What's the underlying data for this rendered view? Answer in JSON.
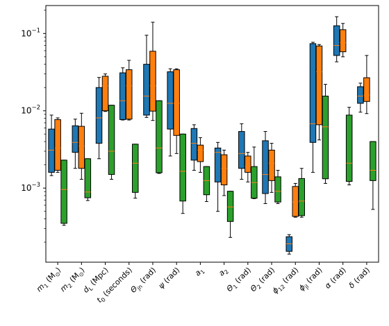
{
  "chart_data": {
    "type": "boxplot",
    "title": "",
    "xlabel": "",
    "ylabel": "",
    "yscale": "log",
    "ylim": [
      0.00011,
      0.23
    ],
    "yticks": [
      {
        "value": 0.001,
        "base": "10",
        "exp": "−3"
      },
      {
        "value": 0.01,
        "base": "10",
        "exp": "−2"
      },
      {
        "value": 0.1,
        "base": "10",
        "exp": "−1"
      }
    ],
    "grid": false,
    "legend": "none",
    "series_colors": [
      "#1f77b4",
      "#ff7f0e",
      "#2ca02c"
    ],
    "median_color": "#ff7f0e",
    "categories": [
      {
        "main": "m",
        "sub": "1",
        "tail": " (M",
        "unit_sub": "⊙",
        "end": ")"
      },
      {
        "main": "m",
        "sub": "2",
        "tail": " (M",
        "unit_sub": "⊙",
        "end": ")"
      },
      {
        "main": "d",
        "sub": "L",
        "tail": " (Mpc)",
        "unit_sub": "",
        "end": ""
      },
      {
        "main": "t",
        "sub": "0",
        "tail": " (seconds)",
        "unit_sub": "",
        "end": ""
      },
      {
        "main": "Θ",
        "sub": "jn",
        "tail": " (rad)",
        "unit_sub": "",
        "end": ""
      },
      {
        "main": "ψ",
        "sub": "",
        "tail": " (rad)",
        "unit_sub": "",
        "end": ""
      },
      {
        "main": "a",
        "sub": "1",
        "tail": "",
        "unit_sub": "",
        "end": ""
      },
      {
        "main": "a",
        "sub": "2",
        "tail": "",
        "unit_sub": "",
        "end": ""
      },
      {
        "main": "Θ",
        "sub": "1",
        "tail": " (rad)",
        "unit_sub": "",
        "end": ""
      },
      {
        "main": "Θ",
        "sub": "2",
        "tail": " (rad)",
        "unit_sub": "",
        "end": ""
      },
      {
        "main": "ϕ",
        "sub": "12",
        "tail": " (rad)",
        "unit_sub": "",
        "end": ""
      },
      {
        "main": "ϕ",
        "sub": "jl",
        "tail": " (rad)",
        "unit_sub": "",
        "end": ""
      },
      {
        "main": "α",
        "sub": "",
        "tail": " (rad)",
        "unit_sub": "",
        "end": ""
      },
      {
        "main": "δ",
        "sub": "",
        "tail": " (rad)",
        "unit_sub": "",
        "end": ""
      }
    ],
    "boxes": [
      [
        {
          "whislo": 0.00145,
          "q1": 0.0016,
          "med": 0.0031,
          "q3": 0.0058,
          "whishi": 0.0088
        },
        {
          "whislo": 0.0016,
          "q1": 0.0017,
          "med": 0.0033,
          "q3": 0.0077,
          "whishi": 0.0081
        },
        {
          "whislo": 0.00033,
          "q1": 0.00035,
          "med": 0.00096,
          "q3": 0.0023,
          "whishi": 0.0023
        }
      ],
      [
        {
          "whislo": 0.0018,
          "q1": 0.0029,
          "med": 0.0039,
          "q3": 0.0064,
          "whishi": 0.0078
        },
        {
          "whislo": 0.0013,
          "q1": 0.0018,
          "med": 0.0035,
          "q3": 0.0063,
          "whishi": 0.0093
        },
        {
          "whislo": 0.00069,
          "q1": 0.00075,
          "med": 0.00089,
          "q3": 0.0024,
          "whishi": 0.0024
        }
      ],
      [
        {
          "whislo": 0.0024,
          "q1": 0.0038,
          "med": 0.0081,
          "q3": 0.02,
          "whishi": 0.027
        },
        {
          "whislo": 0.0098,
          "q1": 0.01,
          "med": 0.021,
          "q3": 0.028,
          "whishi": 0.03
        },
        {
          "whislo": 0.0013,
          "q1": 0.0015,
          "med": 0.003,
          "q3": 0.0118,
          "whishi": 0.0118
        }
      ],
      [
        {
          "whislo": 0.0076,
          "q1": 0.0077,
          "med": 0.0135,
          "q3": 0.031,
          "whishi": 0.036
        },
        {
          "whislo": 0.0076,
          "q1": 0.0078,
          "med": 0.021,
          "q3": 0.034,
          "whishi": 0.045
        },
        {
          "whislo": 0.00074,
          "q1": 0.00088,
          "med": 0.0021,
          "q3": 0.0037,
          "whishi": 0.0037
        }
      ],
      [
        {
          "whislo": 0.0082,
          "q1": 0.0088,
          "med": 0.0155,
          "q3": 0.04,
          "whishi": 0.095
        },
        {
          "whislo": 0.0075,
          "q1": 0.0099,
          "med": 0.021,
          "q3": 0.059,
          "whishi": 0.14
        },
        {
          "whislo": 0.00155,
          "q1": 0.00158,
          "med": 0.0033,
          "q3": 0.0135,
          "whishi": 0.0135
        }
      ],
      [
        {
          "whislo": 0.0026,
          "q1": 0.0058,
          "med": 0.0125,
          "q3": 0.032,
          "whishi": 0.035
        },
        {
          "whislo": 0.0028,
          "q1": 0.0048,
          "med": 0.0125,
          "q3": 0.034,
          "whishi": 0.035
        },
        {
          "whislo": 0.00047,
          "q1": 0.00068,
          "med": 0.00165,
          "q3": 0.005,
          "whishi": 0.005
        }
      ],
      [
        {
          "whislo": 0.0017,
          "q1": 0.0023,
          "med": 0.0038,
          "q3": 0.0059,
          "whishi": 0.0066
        },
        {
          "whislo": 0.0016,
          "q1": 0.0022,
          "med": 0.0031,
          "q3": 0.0036,
          "whishi": 0.0045
        },
        {
          "whislo": 0.00067,
          "q1": 0.00082,
          "med": 0.00125,
          "q3": 0.0019,
          "whishi": 0.0019
        }
      ],
      [
        {
          "whislo": 0.0005,
          "q1": 0.0012,
          "med": 0.0029,
          "q3": 0.0033,
          "whishi": 0.0039
        },
        {
          "whislo": 0.0008,
          "q1": 0.0011,
          "med": 0.0018,
          "q3": 0.0027,
          "whishi": 0.0031
        },
        {
          "whislo": 0.00023,
          "q1": 0.00037,
          "med": 0.00057,
          "q3": 0.00091,
          "whishi": 0.00091
        }
      ],
      [
        {
          "whislo": 0.0013,
          "q1": 0.0018,
          "med": 0.0028,
          "q3": 0.0054,
          "whishi": 0.0068
        },
        {
          "whislo": 0.0012,
          "q1": 0.0016,
          "med": 0.0019,
          "q3": 0.0026,
          "whishi": 0.0029
        },
        {
          "whislo": 0.00073,
          "q1": 0.00074,
          "med": 0.00118,
          "q3": 0.0019,
          "whishi": 0.0034
        }
      ],
      [
        {
          "whislo": 0.00063,
          "q1": 0.00085,
          "med": 0.0015,
          "q3": 0.0041,
          "whishi": 0.0054
        },
        {
          "whislo": 0.00088,
          "q1": 0.00125,
          "med": 0.0021,
          "q3": 0.0031,
          "whishi": 0.0038
        },
        {
          "whislo": 0.00063,
          "q1": 0.00066,
          "med": 0.00091,
          "q3": 0.0014,
          "whishi": 0.0017
        }
      ],
      [
        {
          "whislo": 0.00014,
          "q1": 0.000152,
          "med": 0.00019,
          "q3": 0.000235,
          "whishi": 0.00025
        },
        {
          "whislo": 0.00042,
          "q1": 0.00043,
          "med": 0.00066,
          "q3": 0.00105,
          "whishi": 0.00115
        },
        {
          "whislo": 0.00042,
          "q1": 0.00044,
          "med": 0.00068,
          "q3": 0.00133,
          "whishi": 0.0018
        }
      ],
      [
        {
          "whislo": 0.0016,
          "q1": 0.0039,
          "med": 0.0068,
          "q3": 0.074,
          "whishi": 0.077
        },
        {
          "whislo": 0.0042,
          "q1": 0.0066,
          "med": 0.032,
          "q3": 0.069,
          "whishi": 0.072
        },
        {
          "whislo": 0.00115,
          "q1": 0.00132,
          "med": 0.0062,
          "q3": 0.0155,
          "whishi": 0.022
        }
      ],
      [
        {
          "whislo": 0.043,
          "q1": 0.052,
          "med": 0.07,
          "q3": 0.126,
          "whishi": 0.165
        },
        {
          "whislo": 0.05,
          "q1": 0.058,
          "med": 0.076,
          "q3": 0.112,
          "whishi": 0.135
        },
        {
          "whislo": 0.0011,
          "q1": 0.00122,
          "med": 0.0021,
          "q3": 0.0088,
          "whishi": 0.0111
        }
      ],
      [
        {
          "whislo": 0.0096,
          "q1": 0.0125,
          "med": 0.0155,
          "q3": 0.0205,
          "whishi": 0.0228
        },
        {
          "whislo": 0.0092,
          "q1": 0.0132,
          "med": 0.016,
          "q3": 0.0268,
          "whishi": 0.052
        },
        {
          "whislo": 0.00053,
          "q1": 0.00125,
          "med": 0.0017,
          "q3": 0.004,
          "whishi": 0.004
        }
      ]
    ]
  }
}
